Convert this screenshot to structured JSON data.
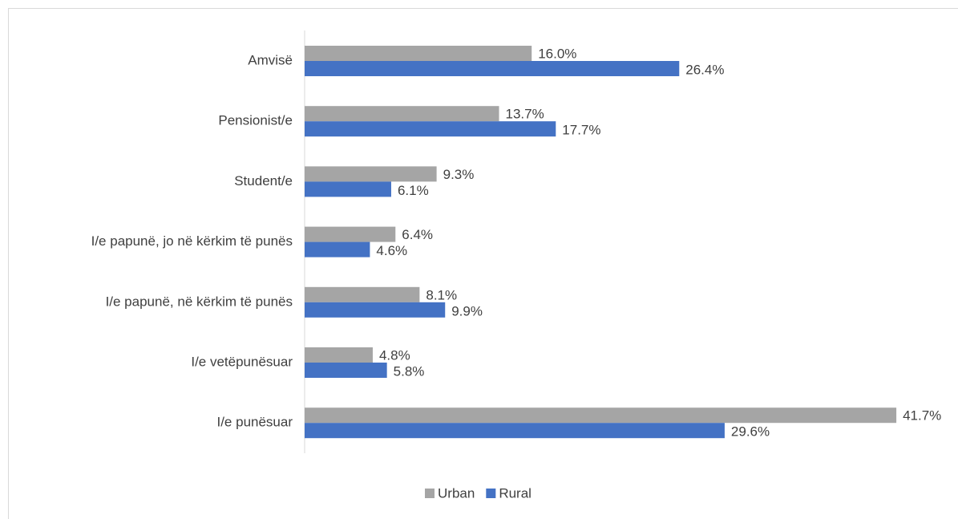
{
  "chart_data": {
    "type": "bar",
    "orientation": "horizontal",
    "categories": [
      "Amvisë",
      "Pensionist/e",
      "Student/e",
      "I/e papunë, jo në kërkim të punës",
      "I/e papunë, në kërkim të punës",
      "I/e vetëpunësuar",
      "I/e punësuar"
    ],
    "series": [
      {
        "name": "Urban",
        "color": "#a5a5a5",
        "values": [
          16.0,
          13.7,
          9.3,
          6.4,
          8.1,
          4.8,
          41.7
        ],
        "value_labels": [
          "16.0%",
          "13.7%",
          "9.3%",
          "6.4%",
          "8.1%",
          "4.8%",
          "41.7%"
        ]
      },
      {
        "name": "Rural",
        "color": "#4472c4",
        "values": [
          26.4,
          17.7,
          6.1,
          4.6,
          9.9,
          5.8,
          29.6
        ],
        "value_labels": [
          "26.4%",
          "17.7%",
          "6.1%",
          "4.6%",
          "9.9%",
          "5.8%",
          "29.6%"
        ]
      }
    ],
    "legend": "bottom"
  }
}
